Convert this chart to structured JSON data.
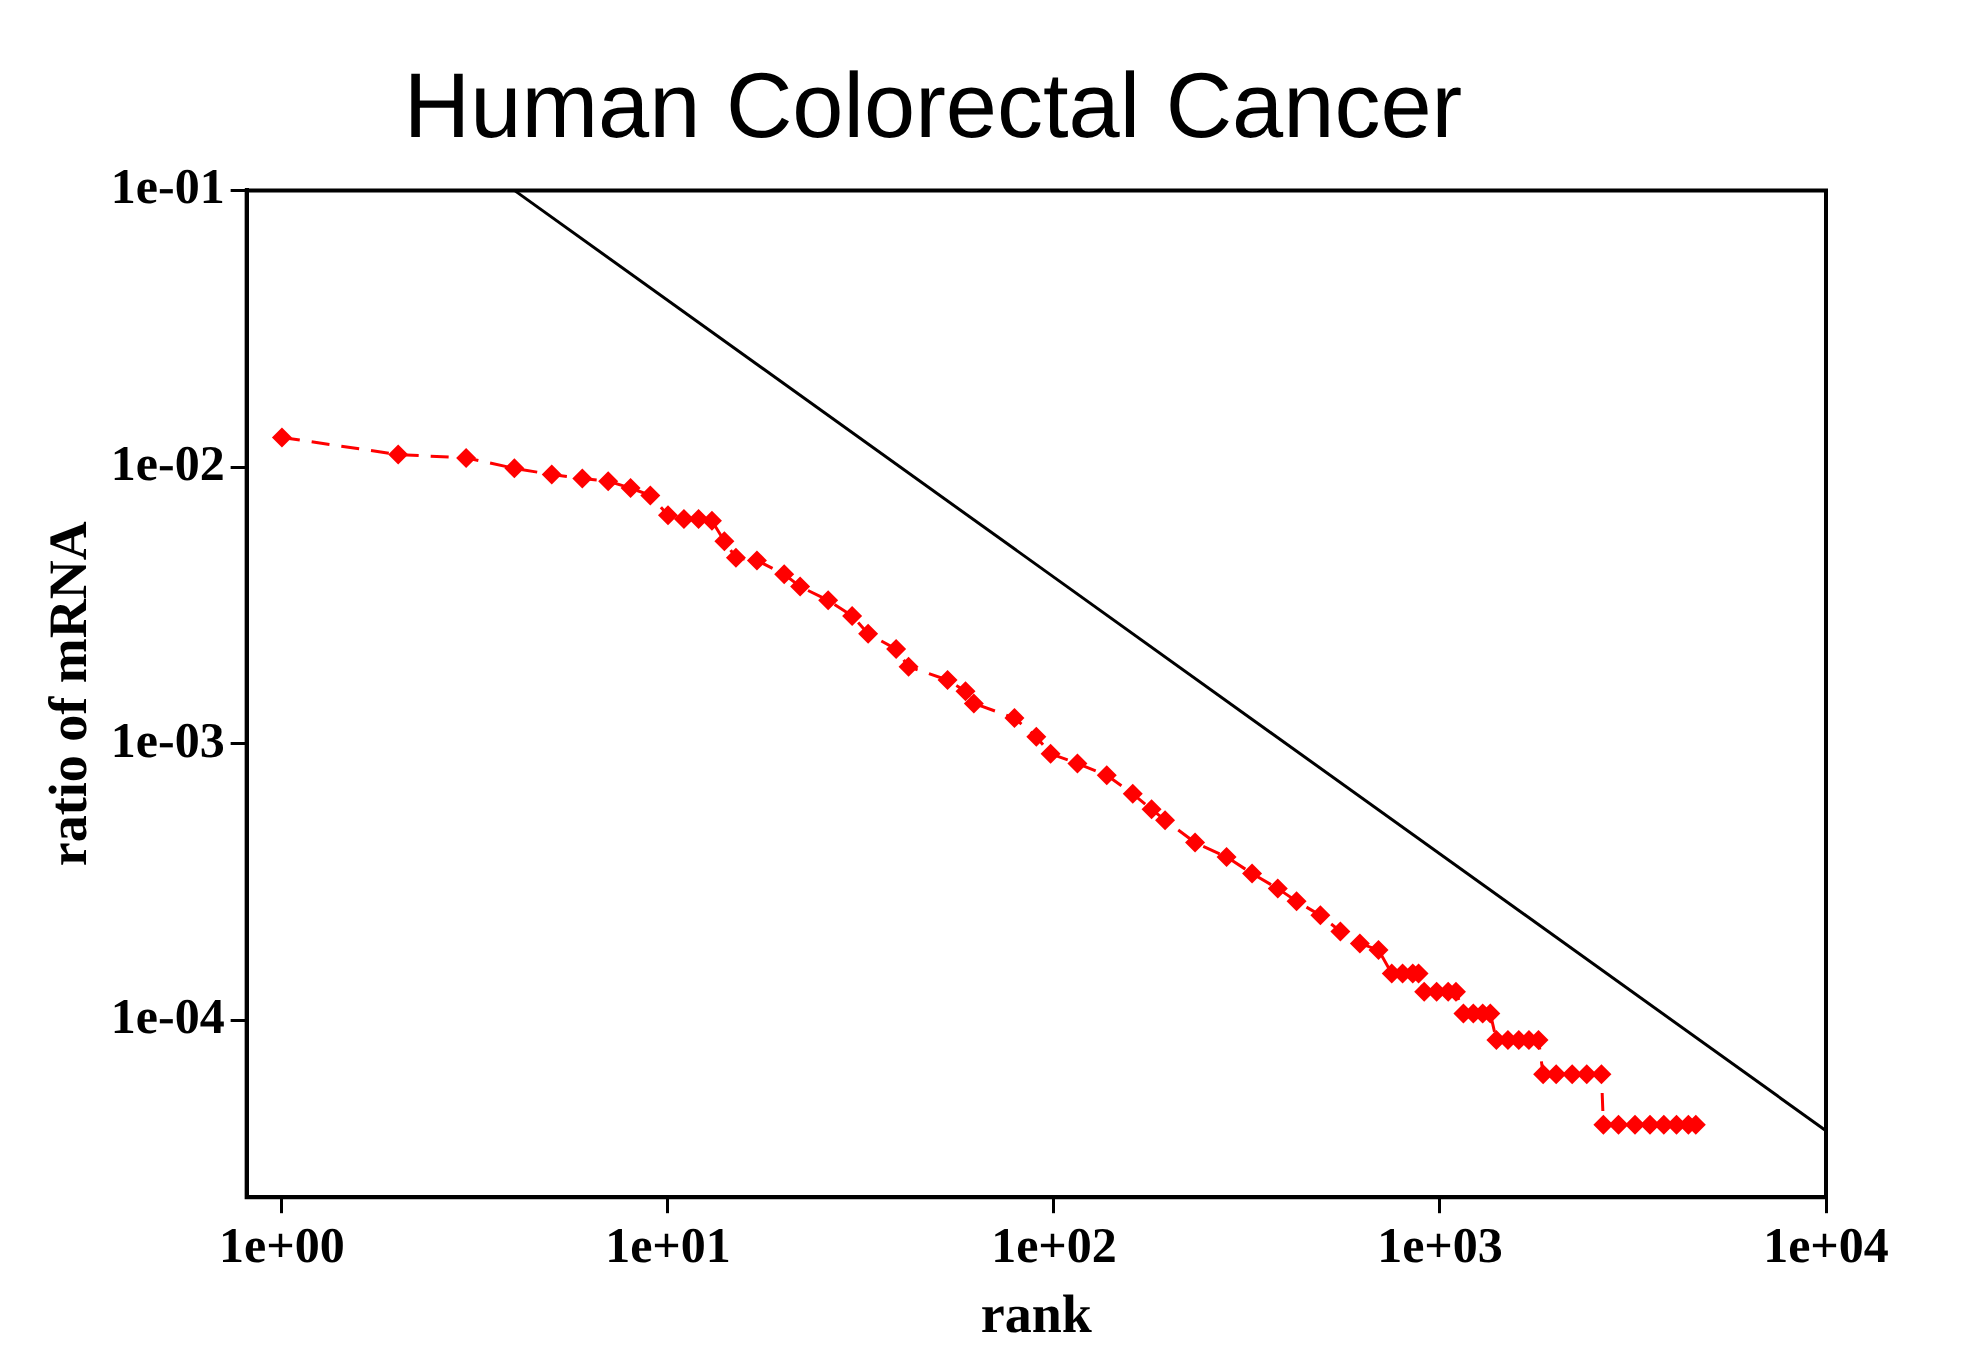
{
  "chart_data": {
    "type": "line",
    "title": "Human Colorectal Cancer",
    "xlabel": "rank",
    "ylabel": "ratio of mRNA",
    "log": "xy",
    "xlim": [
      0.81,
      10000
    ],
    "ylim": [
      2.3e-05,
      0.1
    ],
    "xticks": [
      {
        "value": 1,
        "label": "1e+00"
      },
      {
        "value": 10,
        "label": "1e+01"
      },
      {
        "value": 100,
        "label": "1e+02"
      },
      {
        "value": 1000,
        "label": "1e+03"
      },
      {
        "value": 10000,
        "label": "1e+04"
      }
    ],
    "yticks": [
      {
        "value": 0.0001,
        "label": "1e-04"
      },
      {
        "value": 0.001,
        "label": "1e-03"
      },
      {
        "value": 0.01,
        "label": "1e-02"
      },
      {
        "value": 0.1,
        "label": "1e-01"
      }
    ],
    "series": [
      {
        "color": "#ff0000",
        "marker": "diamond",
        "line_style": "dashed",
        "x": [
          1,
          2,
          3,
          4,
          5,
          6,
          7,
          8,
          9,
          10,
          11,
          12,
          13,
          14,
          15,
          17,
          20,
          22,
          26,
          30,
          33,
          39,
          42,
          53,
          59,
          62,
          79,
          90,
          98,
          115,
          137,
          160,
          179,
          194,
          232,
          280,
          326,
          380,
          425,
          490,
          552,
          620,
          693,
          750,
          800,
          850,
          880,
          910,
          980,
          1050,
          1100,
          1150,
          1220,
          1290,
          1350,
          1400,
          1500,
          1600,
          1700,
          1800,
          1850,
          2000,
          2200,
          2400,
          2620,
          2650,
          2900,
          3200,
          3500,
          3800,
          4100,
          4400,
          4600
        ],
        "values": [
          0.0128,
          0.0111,
          0.0108,
          0.0099,
          0.0094,
          0.0091,
          0.0089,
          0.0084,
          0.0079,
          0.0067,
          0.0065,
          0.0065,
          0.0064,
          0.0054,
          0.0047,
          0.0046,
          0.0041,
          0.0037,
          0.0033,
          0.0029,
          0.0025,
          0.0022,
          0.0019,
          0.0017,
          0.00155,
          0.0014,
          0.00124,
          0.00106,
          0.00092,
          0.00085,
          0.00077,
          0.00066,
          0.00058,
          0.00053,
          0.00044,
          0.00039,
          0.00034,
          0.0003,
          0.00027,
          0.00024,
          0.00021,
          0.00019,
          0.00018,
          0.000148,
          0.000148,
          0.000148,
          0.000148,
          0.000127,
          0.000127,
          0.000127,
          0.000127,
          0.000106,
          0.000106,
          0.000106,
          0.000106,
          8.5e-05,
          8.5e-05,
          8.5e-05,
          8.5e-05,
          8.5e-05,
          6.4e-05,
          6.4e-05,
          6.4e-05,
          6.4e-05,
          6.4e-05,
          4.2e-05,
          4.2e-05,
          4.2e-05,
          4.2e-05,
          4.2e-05,
          4.2e-05,
          4.2e-05,
          4.2e-05
        ]
      },
      {
        "color": "#000000",
        "marker": "none",
        "line_style": "solid",
        "x": [
          4,
          10000
        ],
        "values": [
          0.1,
          4e-05
        ]
      }
    ]
  }
}
